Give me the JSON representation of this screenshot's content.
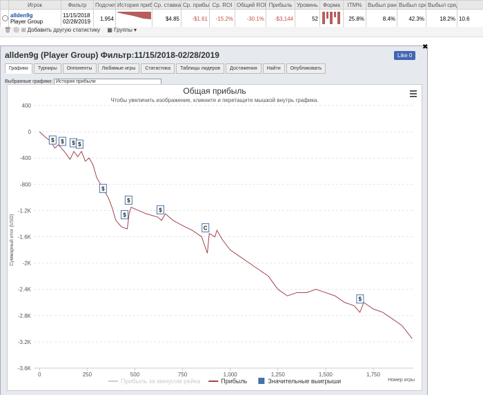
{
  "summary_table": {
    "headers": [
      "Игрок",
      "Фильтр",
      "Подсчет",
      "История приб",
      "Ср. ставка",
      "Ср. прибы",
      "Ср. ROI",
      "Общий ROI",
      "Прибыль",
      "Уровень",
      "Форма",
      "ITM%",
      "Выбыл ранс",
      "Выбыл сре,",
      "Выбыл сред"
    ],
    "row": {
      "player": "allden9g",
      "group": "Player Group",
      "filter_from": "11/15/2018",
      "filter_to": "02/28/2019",
      "count": "1,954",
      "avg_stake": "$4.85",
      "avg_profit": "-$1.61",
      "avg_roi": "-15.2%",
      "total_roi": "-30.1%",
      "profit": "-$3,144",
      "level": "52",
      "itm": "25.8%",
      "early": "8.4%",
      "mid1": "42.3%",
      "mid2": "18.2%",
      "last": "10.6"
    }
  },
  "toolbar": {
    "add": "Добавить другую статистику",
    "groups": "Группы"
  },
  "window": {
    "title": "allden9g (Player Group) Фильтр:11/15/2018-02/28/2019",
    "like": "Like",
    "like_count": "0",
    "tabs": [
      "Графики",
      "Турниры",
      "Оппоненты",
      "Любимые игры",
      "Статистика",
      "Таблицы лидеров",
      "Достижения",
      "Найти",
      "Опубликовать"
    ],
    "selected_label": "Выбранные графики:",
    "selected": "История прибыли"
  },
  "chart_data": {
    "type": "line",
    "title": "Общая прибыль",
    "subtitle": "Чтобы увеличить изображение, кликните и перетащите мышкой внутрь графика.",
    "y_label": "Суммарный итог (USD)",
    "x_label": "Номер игры",
    "xlim": [
      -30,
      1960
    ],
    "xticks": [
      0,
      250,
      500,
      750,
      {
        "value": 1000,
        "label": "1,000"
      },
      {
        "value": 1250,
        "label": "1,250"
      },
      {
        "value": 1500,
        "label": "1,500"
      },
      {
        "value": 1750,
        "label": "1,750"
      }
    ],
    "ylim": [
      -3600,
      400
    ],
    "yticks": [
      400,
      0,
      -400,
      -800,
      {
        "value": -1200,
        "label": "-1.2K"
      },
      {
        "value": -1600,
        "label": "-1.6K"
      },
      {
        "value": -2000,
        "label": "-2K"
      },
      {
        "value": -2400,
        "label": "-2.4K"
      },
      {
        "value": -2800,
        "label": "-2.8K"
      },
      {
        "value": -3200,
        "label": "-3.2K"
      },
      {
        "value": -3600,
        "label": "-3.6K"
      }
    ],
    "grid": true,
    "series": [
      {
        "name": "Прибыль за минусом рейка",
        "color": "#cccccc"
      },
      {
        "name": "Прибыль",
        "color": "#a0414c",
        "x": [
          0,
          30,
          60,
          80,
          100,
          130,
          160,
          180,
          200,
          220,
          240,
          260,
          280,
          300,
          320,
          340,
          360,
          380,
          400,
          430,
          460,
          470,
          480,
          520,
          560,
          620,
          640,
          660,
          700,
          750,
          800,
          850,
          880,
          890,
          920,
          930,
          960,
          1000,
          1050,
          1100,
          1150,
          1200,
          1250,
          1300,
          1350,
          1400,
          1450,
          1500,
          1550,
          1600,
          1650,
          1680,
          1700,
          1750,
          1800,
          1850,
          1900,
          1954
        ],
        "values": [
          0,
          -80,
          -150,
          -250,
          -200,
          -300,
          -420,
          -300,
          -380,
          -300,
          -450,
          -400,
          -500,
          -700,
          -800,
          -900,
          -1000,
          -1150,
          -1350,
          -1450,
          -1480,
          -1250,
          -1150,
          -1200,
          -1250,
          -1300,
          -1350,
          -1250,
          -1350,
          -1430,
          -1500,
          -1600,
          -1850,
          -1550,
          -1600,
          -1500,
          -1650,
          -1800,
          -1900,
          -2000,
          -2100,
          -2200,
          -2400,
          -2500,
          -2450,
          -2450,
          -2400,
          -2450,
          -2500,
          -2600,
          -2650,
          -2750,
          -2600,
          -2700,
          -2750,
          -2850,
          -2950,
          -3150
        ]
      },
      {
        "name": "Значительные выигрыши",
        "color": "#4572a7",
        "x": [
          69,
          120,
          178,
          210,
          333,
          467,
          446,
          634,
          870,
          1681
        ],
        "values": [
          -126,
          -147,
          -168,
          -189,
          -863,
          -1042,
          -1263,
          -1189,
          -1463,
          -2547
        ],
        "labels": [
          "$",
          "$",
          "$",
          "$",
          "$",
          "$",
          "$",
          "$",
          "C",
          "$"
        ]
      }
    ]
  }
}
